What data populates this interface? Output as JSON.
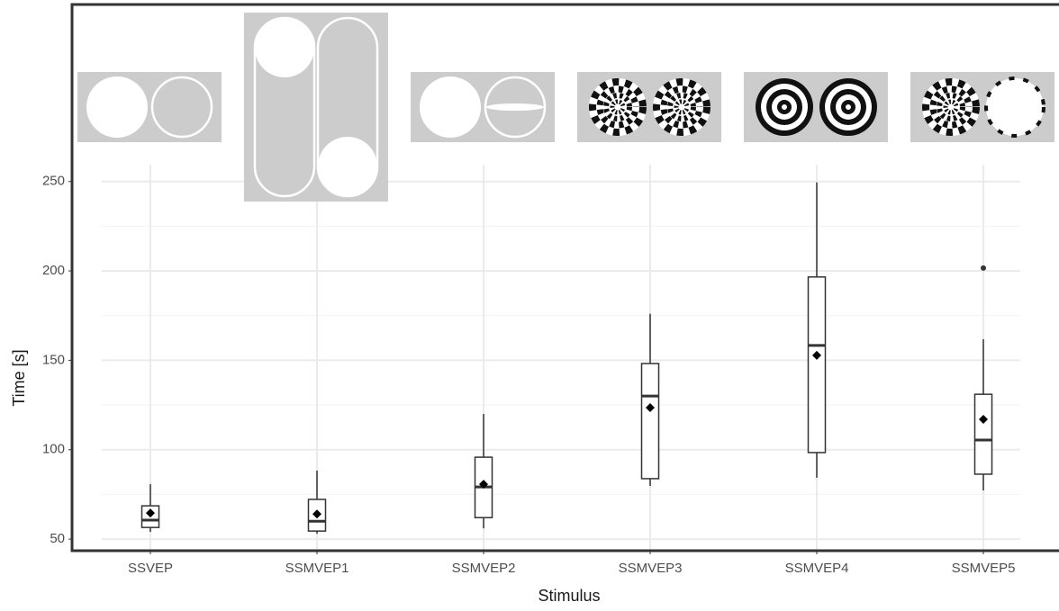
{
  "chart_data": {
    "type": "box",
    "x_label": "Stimulus",
    "y_label": "Time [s]",
    "categories": [
      "SSVEP",
      "SSMVEP1",
      "SSMVEP2",
      "SSMVEP3",
      "SSMVEP4",
      "SSMVEP5"
    ],
    "boxes": [
      {
        "min": 54,
        "q1": 56.5,
        "median": 60.6,
        "q3": 68.6,
        "max": 80.7,
        "mean": 64.6
      },
      {
        "min": 53,
        "q1": 54.5,
        "median": 60,
        "q3": 72.2,
        "max": 88.3,
        "mean": 64
      },
      {
        "min": 56,
        "q1": 62,
        "median": 79.2,
        "q3": 95.8,
        "max": 120,
        "mean": 80.7
      },
      {
        "min": 79.7,
        "q1": 83.8,
        "median": 130,
        "q3": 148.2,
        "max": 176,
        "mean": 123.5
      },
      {
        "min": 84.3,
        "q1": 98.4,
        "median": 158.3,
        "q3": 196.6,
        "max": 249.5,
        "mean": 152.8
      },
      {
        "min": 77.2,
        "q1": 86.3,
        "median": 105.4,
        "q3": 131,
        "max": 161.8,
        "mean": 117,
        "outliers": [
          201.6
        ]
      }
    ],
    "color": "#333333",
    "ylim": [
      43.5,
      349
    ],
    "yticks": [
      50,
      100,
      150,
      200,
      250
    ],
    "grid": true
  }
}
